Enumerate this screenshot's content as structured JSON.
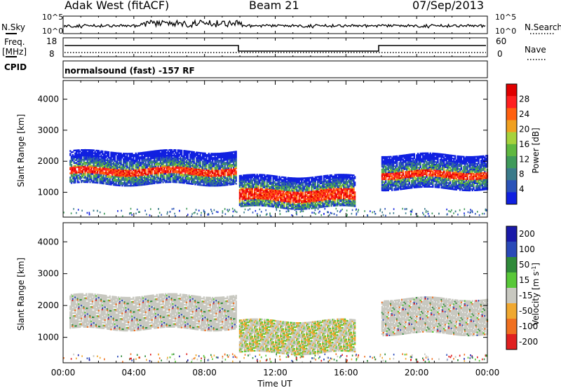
{
  "header": {
    "station": "Adak West (fitACF)",
    "beam": "Beam 21",
    "date": "07/Sep/2013"
  },
  "top_panels": {
    "nsky_label": "N.Sky",
    "nsearch_label": "N.Search",
    "nsky_ticks": [
      "10^5",
      "10^0"
    ],
    "right_ticks": [
      "10^5",
      "10^0"
    ],
    "freq_label_1": "Freq.",
    "freq_label_2": "[MHz]",
    "freq_ticks": [
      "18",
      "8"
    ],
    "nave_label": "Nave",
    "nave_ticks": [
      "60",
      "0"
    ],
    "cpid_label": "CPID",
    "cpid_text": "normalsound (fast) -157 RF"
  },
  "chart_data": [
    {
      "type": "heatmap",
      "name": "power",
      "ylabel": "Slant Range [km]",
      "xlabel": "",
      "x_ticks": [
        "00:00",
        "04:00",
        "08:00",
        "12:00",
        "16:00",
        "20:00",
        "00:00"
      ],
      "x_range_hours": [
        0,
        24
      ],
      "y_ticks": [
        1000,
        2000,
        3000,
        4000
      ],
      "ylim": [
        200,
        4600
      ],
      "colorbar": {
        "label": "Power [dB]",
        "ticks": [
          4,
          8,
          12,
          16,
          20,
          24,
          28
        ],
        "colors": [
          "#1020e0",
          "#2a52b8",
          "#3a7a8a",
          "#3f9a5a",
          "#5fb840",
          "#a6d23c",
          "#f0a020",
          "#ff6010",
          "#ff2020",
          "#e00000"
        ]
      },
      "echo_regions": [
        {
          "t_start": 0.3,
          "t_end": 9.8,
          "range_core_km": [
            1550,
            1750
          ],
          "range_spread_km": [
            1250,
            2300
          ],
          "peak_db": 28
        },
        {
          "t_start": 9.95,
          "t_end": 16.5,
          "range_core_km": [
            700,
            1050
          ],
          "range_spread_km": [
            500,
            1500
          ],
          "peak_db": 28
        },
        {
          "t_start": 18.0,
          "t_end": 24.0,
          "range_core_km": [
            1450,
            1650
          ],
          "range_spread_km": [
            1100,
            2200
          ],
          "peak_db": 28
        }
      ]
    },
    {
      "type": "heatmap",
      "name": "velocity",
      "ylabel": "Slant Range [km]",
      "xlabel": "Time UT",
      "x_ticks": [
        "00:00",
        "04:00",
        "08:00",
        "12:00",
        "16:00",
        "20:00",
        "00:00"
      ],
      "x_range_hours": [
        0,
        24
      ],
      "y_ticks": [
        1000,
        2000,
        3000,
        4000
      ],
      "ylim": [
        200,
        4600
      ],
      "colorbar": {
        "label": "Velocity [m s^-1]",
        "ticks": [
          200,
          100,
          50,
          15,
          -15,
          -50,
          -100,
          -200
        ],
        "colors": [
          "#1a1aa8",
          "#2a4ab8",
          "#2f8a3a",
          "#58c838",
          "#c8c8c0",
          "#f0a830",
          "#f07020",
          "#e02020"
        ]
      },
      "ground_scatter_color": "#c8c8c0"
    }
  ]
}
